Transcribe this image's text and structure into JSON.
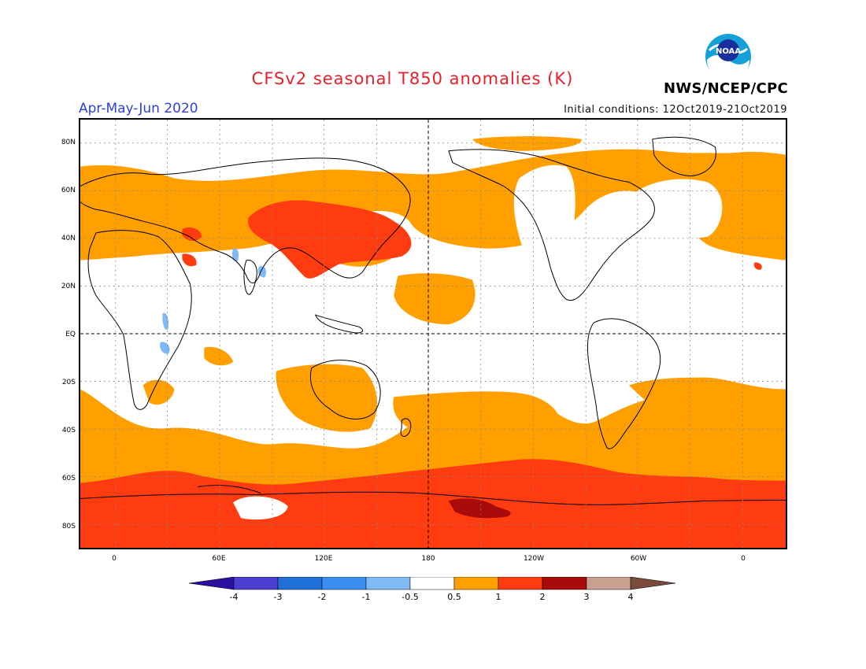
{
  "title": "CFSv2 seasonal T850 anomalies (K)",
  "season": "Apr-May-Jun 2020",
  "initial_conditions": "Initial conditions: 12Oct2019-21Oct2019",
  "agency": "NWS/NCEP/CPC",
  "logo_text": "NOAA",
  "lat_labels": [
    "80N",
    "60N",
    "40N",
    "20N",
    "EQ",
    "20S",
    "40S",
    "60S",
    "80S"
  ],
  "lon_labels": [
    "0",
    "60E",
    "120E",
    "180",
    "120W",
    "60W",
    "0"
  ],
  "colorbar": {
    "labels": [
      "-4",
      "-3",
      "-2",
      "-1",
      "-0.5",
      "0.5",
      "1",
      "2",
      "3",
      "4"
    ],
    "colors": [
      "#2a0fa0",
      "#4a3fd0",
      "#1f6fd8",
      "#3b8ff0",
      "#7fbaf6",
      "#ffffff",
      "#ff9f00",
      "#ff3c10",
      "#a90a0a",
      "#c8a090",
      "#7a4a3a"
    ]
  },
  "colors": {
    "title": "#e8202a",
    "season": "#2b3fe0",
    "anomaly_0_5_to_1": "#ff9f00",
    "anomaly_1_to_2": "#ff3c10",
    "anomaly_2_to_3": "#a90a0a",
    "negative_light": "#7fbaf6"
  }
}
